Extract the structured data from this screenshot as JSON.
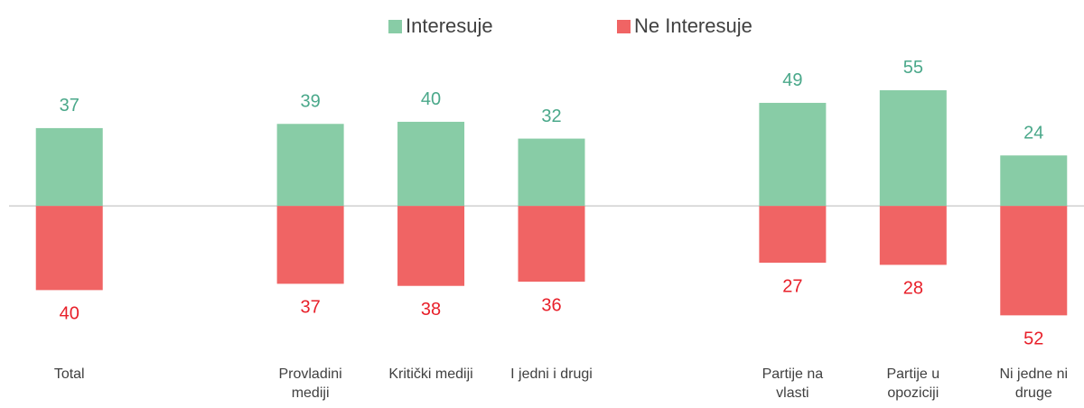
{
  "chart_data": {
    "type": "bar",
    "categories": [
      "Total",
      null,
      "Provladini\nmediji",
      "Kritički mediji",
      "I jedni i drugi",
      null,
      "Partije na\nvlasti",
      "Partije u\nopoziciji",
      "Ni jedne ni\ndruge"
    ],
    "series": [
      {
        "name": "Interesuje",
        "color": "#88cca6",
        "label_color": "#4aa88a",
        "values": [
          37,
          null,
          39,
          40,
          32,
          null,
          49,
          55,
          24
        ]
      },
      {
        "name": "Ne Interesuje",
        "color": "#f06464",
        "label_color": "#e8202a",
        "values": [
          -40,
          null,
          -37,
          -38,
          -36,
          null,
          -27,
          -28,
          -52
        ],
        "value_labels": [
          "40",
          null,
          "37",
          "38",
          "36",
          null,
          "27",
          "28",
          "52"
        ]
      }
    ],
    "ylim": [
      -60,
      70
    ],
    "legend": "top"
  }
}
